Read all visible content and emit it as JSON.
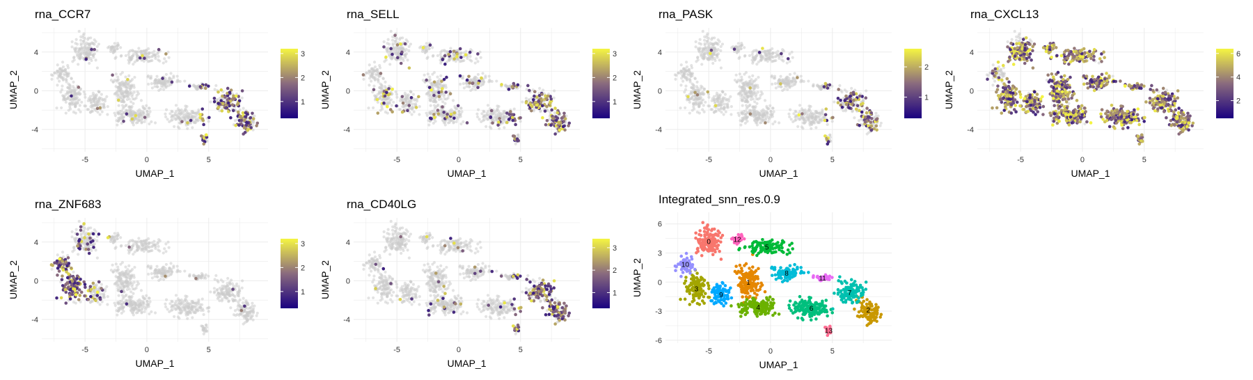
{
  "chart_data": [
    {
      "type": "scatter",
      "title": "rna_CCR7",
      "xlabel": "UMAP_1",
      "ylabel": "UMAP_2",
      "xticks": [
        -5,
        0,
        5
      ],
      "yticks": [
        4,
        0,
        -4
      ],
      "xlim": [
        -8.5,
        9.8
      ],
      "ylim": [
        -6.3,
        6.5
      ],
      "grid": true,
      "colorbar": {
        "ticks": [
          1,
          2,
          3
        ],
        "min": 0.3,
        "max": 3.2,
        "low_color": "#1a0080",
        "mid_color": "#8a6b7e",
        "high_color": "#f5f542"
      },
      "expression_region": "right cluster (UMAP_1 5 to 9)"
    },
    {
      "type": "scatter",
      "title": "rna_SELL",
      "xlabel": "UMAP_1",
      "ylabel": "UMAP_2",
      "xticks": [
        -5,
        0,
        5
      ],
      "yticks": [
        4,
        0,
        -4
      ],
      "xlim": [
        -8.5,
        9.8
      ],
      "ylim": [
        -6.3,
        6.5
      ],
      "grid": true,
      "colorbar": {
        "ticks": [
          1,
          2,
          3
        ],
        "min": 0.3,
        "max": 3.2
      },
      "expression_region": "scattered, denser in right cluster"
    },
    {
      "type": "scatter",
      "title": "rna_PASK",
      "xlabel": "UMAP_1",
      "ylabel": "UMAP_2",
      "xticks": [
        -5,
        0,
        5
      ],
      "yticks": [
        4,
        0,
        -4
      ],
      "xlim": [
        -8.5,
        9.8
      ],
      "ylim": [
        -6.3,
        6.5
      ],
      "grid": true,
      "colorbar": {
        "ticks": [
          1,
          2
        ],
        "min": 0.3,
        "max": 2.6
      },
      "expression_region": "right cluster"
    },
    {
      "type": "scatter",
      "title": "rna_CXCL13",
      "xlabel": "UMAP_1",
      "ylabel": "UMAP_2",
      "xticks": [
        -5,
        0,
        5
      ],
      "yticks": [
        4,
        0,
        -4
      ],
      "xlim": [
        -8.5,
        9.8
      ],
      "ylim": [
        -6.3,
        6.5
      ],
      "grid": true,
      "colorbar": {
        "ticks": [
          2,
          4,
          6
        ],
        "min": 0.5,
        "max": 6.4
      },
      "expression_region": "broad, most cells"
    },
    {
      "type": "scatter",
      "title": "rna_ZNF683",
      "xlabel": "UMAP_1",
      "ylabel": "UMAP_2",
      "xticks": [
        -5,
        0,
        5
      ],
      "yticks": [
        4,
        0,
        -4
      ],
      "xlim": [
        -8.5,
        9.8
      ],
      "ylim": [
        -6.3,
        6.5
      ],
      "grid": true,
      "colorbar": {
        "ticks": [
          1,
          2,
          3
        ],
        "min": 0.3,
        "max": 3.2
      },
      "expression_region": "left cluster (UMAP_1 -7 to -5)"
    },
    {
      "type": "scatter",
      "title": "rna_CD40LG",
      "xlabel": "UMAP_1",
      "ylabel": "UMAP_2",
      "xticks": [
        -5,
        0,
        5
      ],
      "yticks": [
        4,
        0,
        -4
      ],
      "xlim": [
        -8.5,
        9.8
      ],
      "ylim": [
        -6.3,
        6.5
      ],
      "grid": true,
      "colorbar": {
        "ticks": [
          1,
          2,
          3
        ],
        "min": 0.3,
        "max": 3.4
      },
      "expression_region": "right cluster"
    },
    {
      "type": "scatter",
      "title": "Integrated_snn_res.0.9",
      "xlabel": "UMAP_1",
      "ylabel": "UMAP_2",
      "xticks": [
        -5,
        0,
        5
      ],
      "yticks": [
        6,
        3,
        0,
        -3,
        -6
      ],
      "xlim": [
        -8.5,
        9.8
      ],
      "ylim": [
        -6.3,
        7.2
      ],
      "grid": true,
      "clusters": [
        {
          "label": "0",
          "x": -5.0,
          "y": 4.2,
          "color": "#F8766D"
        },
        {
          "label": "1",
          "x": -1.8,
          "y": 0.0,
          "color": "#E58700"
        },
        {
          "label": "2",
          "x": 7.9,
          "y": -2.9,
          "color": "#C99800"
        },
        {
          "label": "3",
          "x": -6.0,
          "y": -0.7,
          "color": "#A3A500"
        },
        {
          "label": "4",
          "x": -1.0,
          "y": -2.6,
          "color": "#6BB100"
        },
        {
          "label": "5",
          "x": -0.3,
          "y": 3.6,
          "color": "#00BA38"
        },
        {
          "label": "6",
          "x": 3.3,
          "y": -2.7,
          "color": "#00BF7D"
        },
        {
          "label": "7",
          "x": 6.4,
          "y": -1.1,
          "color": "#00C0AF"
        },
        {
          "label": "8",
          "x": 1.3,
          "y": 0.9,
          "color": "#00BCD8"
        },
        {
          "label": "9",
          "x": -4.0,
          "y": -1.3,
          "color": "#00A9FF"
        },
        {
          "label": "10",
          "x": -6.9,
          "y": 1.8,
          "color": "#9590FF"
        },
        {
          "label": "11",
          "x": 4.2,
          "y": 0.4,
          "color": "#E76BF3"
        },
        {
          "label": "12",
          "x": -2.7,
          "y": 4.4,
          "color": "#FF62BC"
        },
        {
          "label": "13",
          "x": 4.7,
          "y": -5.0,
          "color": "#FF6C91"
        }
      ]
    }
  ],
  "colors": {
    "background_cells": "#cccccc",
    "grid": "#ebebeb"
  }
}
